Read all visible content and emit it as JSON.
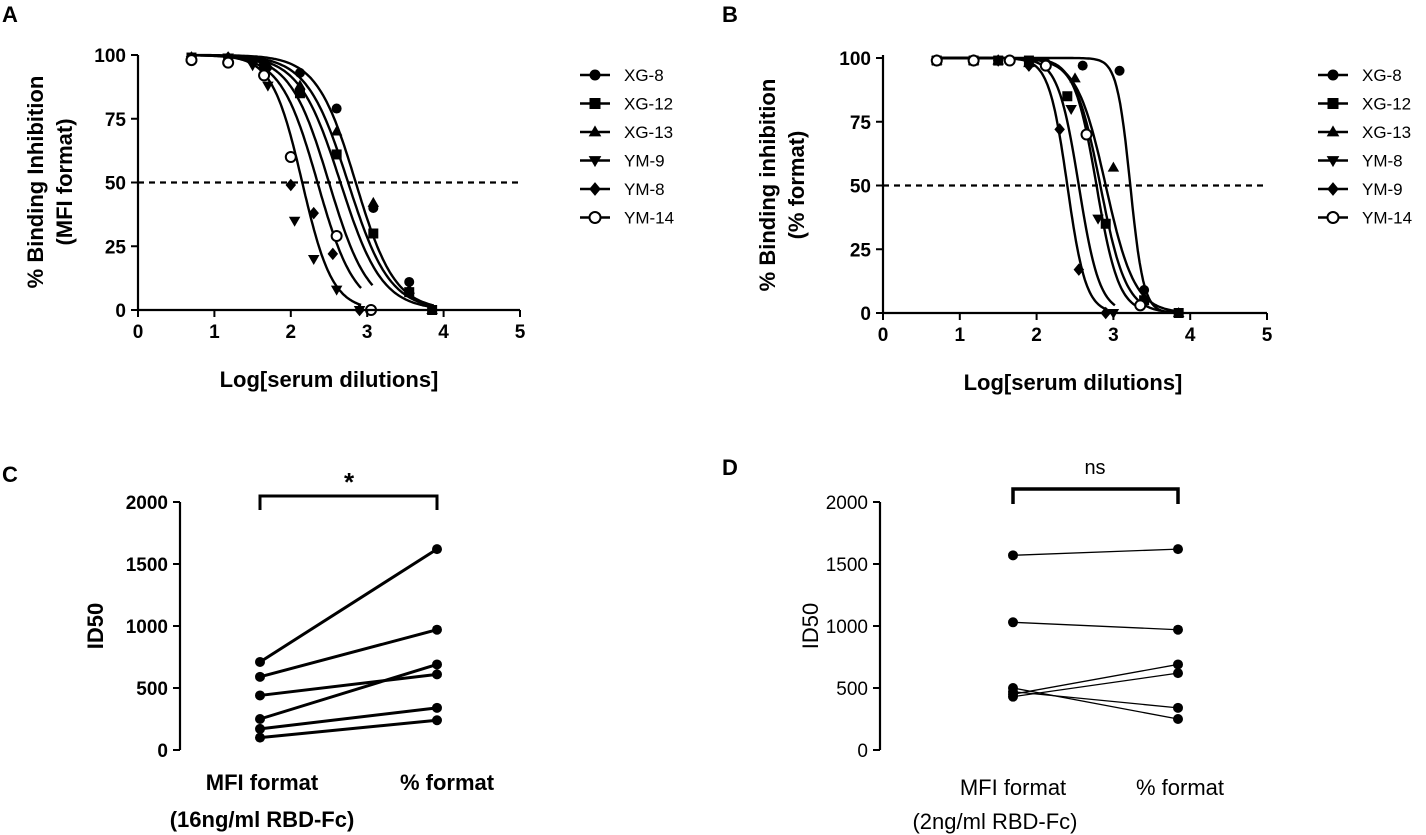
{
  "chart_data": [
    {
      "panel": "A",
      "type": "line",
      "xlabel": "Log[serum dilutions]",
      "ylabel_line1": "% Binding Inhibition",
      "ylabel_line2": "(MFI format)",
      "xlim": [
        0,
        5
      ],
      "ylim": [
        0,
        100
      ],
      "xticks": [
        "0",
        "1",
        "2",
        "3",
        "4",
        "5"
      ],
      "yticks": [
        "0",
        "25",
        "50",
        "75",
        "100"
      ],
      "reference_line": 50,
      "series": [
        {
          "name": "XG-8",
          "marker": "circle",
          "ic50": 2.85,
          "hill": 1.7,
          "x": [
            0.7,
            1.18,
            1.65,
            2.12,
            2.6,
            3.08,
            3.55,
            3.85
          ],
          "y": [
            98,
            98,
            95,
            93,
            79,
            40,
            11,
            0
          ]
        },
        {
          "name": "XG-12",
          "marker": "square",
          "ic50": 2.65,
          "hill": 1.6,
          "x": [
            0.7,
            1.18,
            1.65,
            2.12,
            2.6,
            3.08,
            3.55,
            3.85
          ],
          "y": [
            99,
            98,
            96,
            85,
            61,
            30,
            7,
            0
          ]
        },
        {
          "name": "XG-13",
          "marker": "triangle-up",
          "ic50": 2.75,
          "hill": 1.6,
          "x": [
            0.7,
            1.18,
            1.65,
            2.12,
            2.6,
            3.08,
            3.55,
            3.85
          ],
          "y": [
            99,
            98,
            96,
            88,
            70,
            42,
            8,
            0
          ]
        },
        {
          "name": "YM-9",
          "marker": "triangle-down",
          "ic50": 2.15,
          "hill": 2.2,
          "x": [
            0.7,
            1.18,
            1.5,
            1.7,
            2.05,
            2.3,
            2.6,
            2.9
          ],
          "y": [
            98,
            99,
            96,
            88,
            35,
            20,
            8,
            0
          ]
        },
        {
          "name": "YM-8",
          "marker": "diamond",
          "ic50": 2.35,
          "hill": 1.8,
          "x": [
            0.7,
            1.18,
            1.5,
            1.7,
            2.0,
            2.3,
            2.55,
            2.9
          ],
          "y": [
            99,
            99,
            97,
            95,
            49,
            38,
            22,
            0
          ]
        },
        {
          "name": "YM-14",
          "marker": "circle-open",
          "ic50": 2.5,
          "hill": 1.7,
          "x": [
            0.7,
            1.18,
            1.65,
            2.0,
            2.6,
            3.05
          ],
          "y": [
            98,
            97,
            92,
            60,
            29,
            0
          ]
        }
      ]
    },
    {
      "panel": "B",
      "type": "line",
      "xlabel": "Log[serum dilutions]",
      "ylabel_line1": "% Binding inhibition",
      "ylabel_line2": "(% format)",
      "xlim": [
        0,
        5
      ],
      "ylim": [
        0,
        100
      ],
      "xticks": [
        "0",
        "1",
        "2",
        "3",
        "4",
        "5"
      ],
      "yticks": [
        "0",
        "25",
        "50",
        "75",
        "100"
      ],
      "reference_line": 50,
      "series": [
        {
          "name": "XG-8",
          "marker": "circle",
          "ic50": 3.22,
          "hill": 5.0,
          "x": [
            0.7,
            1.18,
            1.65,
            2.12,
            2.6,
            3.08,
            3.4,
            3.85
          ],
          "y": [
            99,
            99,
            99,
            98,
            97,
            95,
            9,
            0
          ]
        },
        {
          "name": "XG-12",
          "marker": "square",
          "ic50": 2.83,
          "hill": 2.6,
          "x": [
            0.7,
            1.18,
            1.5,
            1.9,
            2.4,
            2.9,
            3.4,
            3.85
          ],
          "y": [
            99,
            99,
            99,
            99,
            85,
            35,
            5,
            0
          ]
        },
        {
          "name": "XG-13",
          "marker": "triangle-up",
          "ic50": 2.9,
          "hill": 2.3,
          "x": [
            0.7,
            1.18,
            1.5,
            1.9,
            2.5,
            3.0,
            3.4,
            3.85
          ],
          "y": [
            99,
            99,
            99,
            98,
            92,
            57,
            6,
            0
          ]
        },
        {
          "name": "YM-8",
          "marker": "triangle-down",
          "ic50": 2.55,
          "hill": 3.2,
          "x": [
            0.7,
            1.18,
            1.5,
            1.9,
            2.45,
            2.8,
            3.0
          ],
          "y": [
            99,
            99,
            99,
            98,
            80,
            37,
            0
          ]
        },
        {
          "name": "YM-9",
          "marker": "diamond",
          "ic50": 2.4,
          "hill": 3.6,
          "x": [
            0.7,
            1.18,
            1.5,
            1.9,
            2.3,
            2.55,
            2.9
          ],
          "y": [
            99,
            99,
            99,
            97,
            72,
            17,
            0
          ]
        },
        {
          "name": "YM-14",
          "marker": "circle-open",
          "ic50": 2.78,
          "hill": 3.0,
          "x": [
            0.7,
            1.18,
            1.65,
            2.12,
            2.65,
            3.35
          ],
          "y": [
            99,
            99,
            99,
            97,
            70,
            3
          ]
        }
      ]
    },
    {
      "panel": "C",
      "type": "line",
      "ylabel": "ID50",
      "ylim": [
        0,
        2000
      ],
      "yticks": [
        "0",
        "500",
        "1000",
        "1500",
        "2000"
      ],
      "categories": [
        "MFI format",
        "% format"
      ],
      "category_sublabels": [
        "(16ng/ml RBD-Fc)",
        ""
      ],
      "significance": "*",
      "pairs": [
        [
          710,
          1620
        ],
        [
          590,
          970
        ],
        [
          440,
          610
        ],
        [
          250,
          690
        ],
        [
          170,
          340
        ],
        [
          100,
          240
        ]
      ]
    },
    {
      "panel": "D",
      "type": "line",
      "ylabel": "ID50",
      "ylim": [
        0,
        2000
      ],
      "yticks": [
        "0",
        "500",
        "1000",
        "1500",
        "2000"
      ],
      "categories": [
        "MFI format",
        "% format"
      ],
      "category_sublabels": [
        "(2ng/ml RBD-Fc)",
        ""
      ],
      "significance": "ns",
      "pairs": [
        [
          1570,
          1620
        ],
        [
          1030,
          970
        ],
        [
          500,
          250
        ],
        [
          470,
          340
        ],
        [
          450,
          690
        ],
        [
          430,
          620
        ]
      ]
    }
  ]
}
